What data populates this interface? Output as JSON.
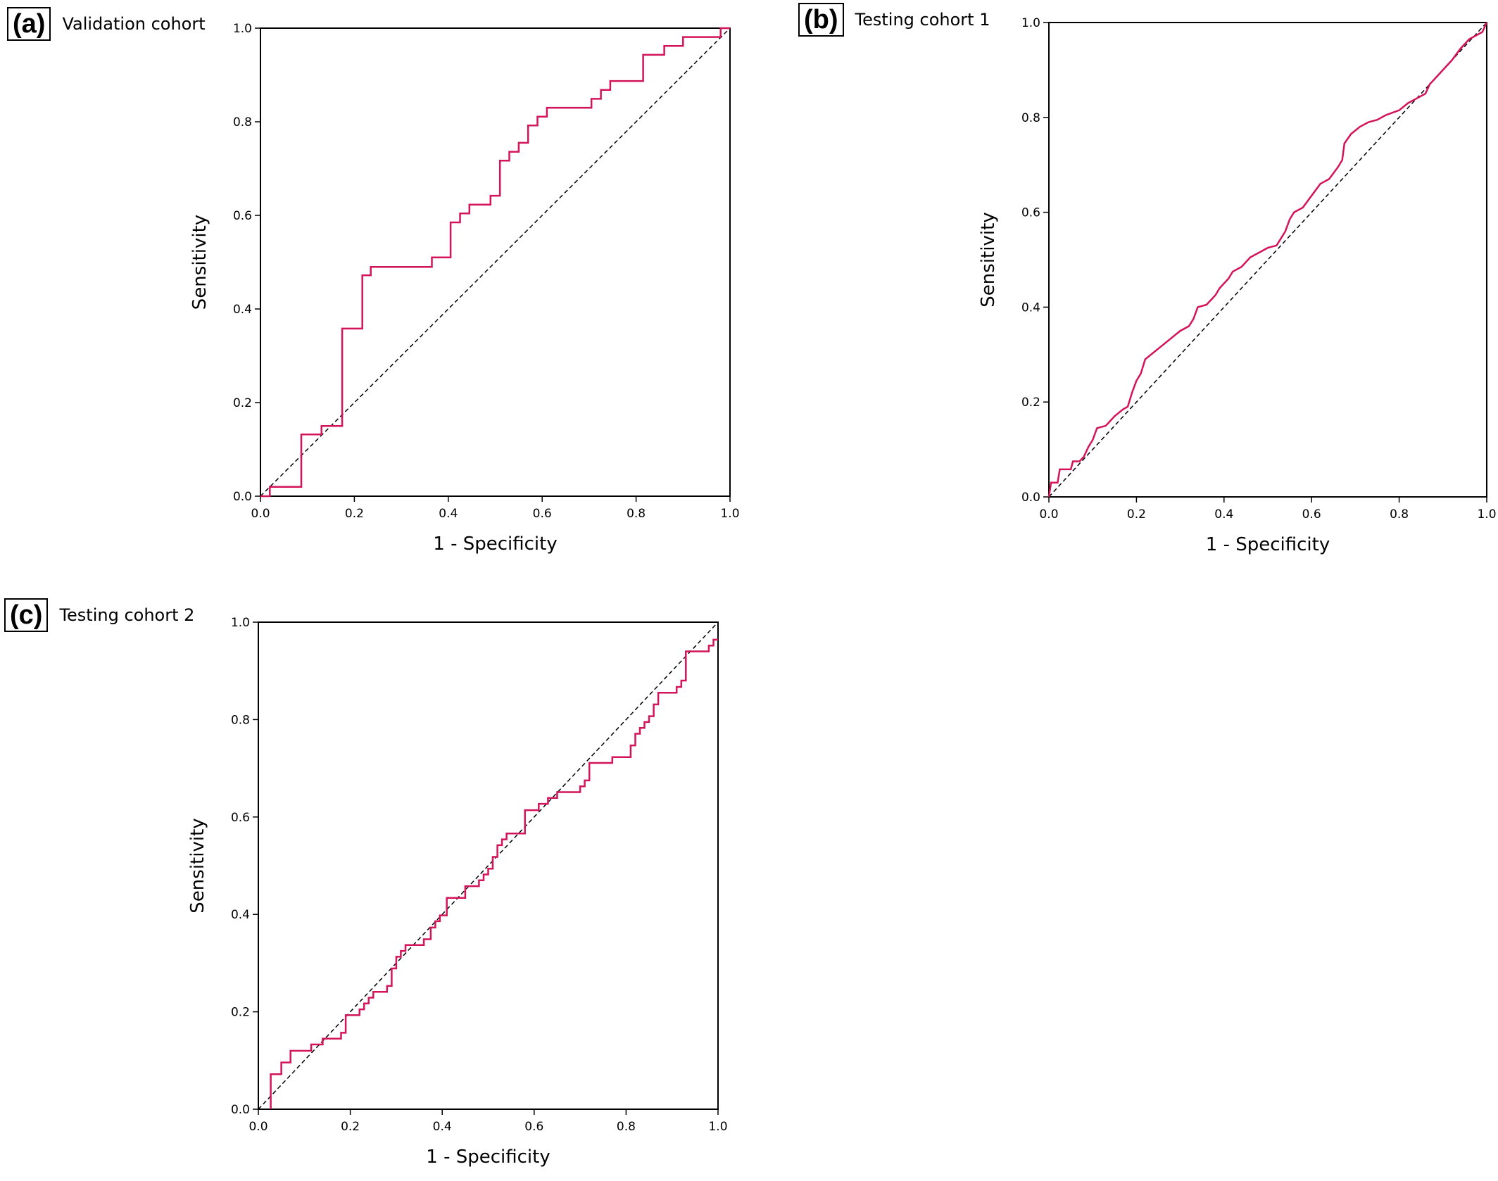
{
  "chart_data": [
    {
      "panel": "(a)",
      "title": "Validation cohort",
      "type": "line",
      "xlabel": "1 - Specificity",
      "ylabel": "Sensitivity",
      "xlim": [
        0,
        1
      ],
      "ylim": [
        0,
        1
      ],
      "x_ticks": [
        "0.0",
        "0.2",
        "0.4",
        "0.6",
        "0.8",
        "1.0"
      ],
      "y_ticks": [
        "0.0",
        "0.2",
        "0.4",
        "0.6",
        "0.8",
        "1.0"
      ],
      "reference_line": [
        [
          0,
          0
        ],
        [
          1,
          1
        ]
      ],
      "series": [
        {
          "color": "#d4145a",
          "step": true,
          "points": [
            [
              0,
              0
            ],
            [
              0.02,
              0
            ],
            [
              0.02,
              0.02
            ],
            [
              0.087,
              0.02
            ],
            [
              0.087,
              0.132
            ],
            [
              0.13,
              0.132
            ],
            [
              0.13,
              0.15
            ],
            [
              0.174,
              0.15
            ],
            [
              0.174,
              0.358
            ],
            [
              0.217,
              0.358
            ],
            [
              0.217,
              0.472
            ],
            [
              0.235,
              0.472
            ],
            [
              0.235,
              0.49
            ],
            [
              0.365,
              0.49
            ],
            [
              0.365,
              0.51
            ],
            [
              0.405,
              0.51
            ],
            [
              0.405,
              0.585
            ],
            [
              0.425,
              0.585
            ],
            [
              0.425,
              0.604
            ],
            [
              0.445,
              0.604
            ],
            [
              0.445,
              0.623
            ],
            [
              0.49,
              0.623
            ],
            [
              0.49,
              0.642
            ],
            [
              0.51,
              0.642
            ],
            [
              0.51,
              0.717
            ],
            [
              0.53,
              0.717
            ],
            [
              0.53,
              0.736
            ],
            [
              0.55,
              0.736
            ],
            [
              0.55,
              0.755
            ],
            [
              0.57,
              0.755
            ],
            [
              0.57,
              0.792
            ],
            [
              0.59,
              0.792
            ],
            [
              0.59,
              0.811
            ],
            [
              0.61,
              0.811
            ],
            [
              0.61,
              0.83
            ],
            [
              0.705,
              0.83
            ],
            [
              0.705,
              0.849
            ],
            [
              0.725,
              0.849
            ],
            [
              0.725,
              0.868
            ],
            [
              0.745,
              0.868
            ],
            [
              0.745,
              0.887
            ],
            [
              0.815,
              0.887
            ],
            [
              0.815,
              0.943
            ],
            [
              0.86,
              0.943
            ],
            [
              0.86,
              0.962
            ],
            [
              0.9,
              0.962
            ],
            [
              0.9,
              0.981
            ],
            [
              0.98,
              0.981
            ],
            [
              0.98,
              1.0
            ],
            [
              1.0,
              1.0
            ]
          ]
        }
      ]
    },
    {
      "panel": "(b)",
      "title": "Testing cohort 1",
      "type": "line",
      "xlabel": "1 - Specificity",
      "ylabel": "Sensitivity",
      "xlim": [
        0,
        1
      ],
      "ylim": [
        0,
        1
      ],
      "x_ticks": [
        "0.0",
        "0.2",
        "0.4",
        "0.6",
        "0.8",
        "1.0"
      ],
      "y_ticks": [
        "0.0",
        "0.2",
        "0.4",
        "0.6",
        "0.8",
        "1.0"
      ],
      "reference_line": [
        [
          0,
          0
        ],
        [
          1,
          1
        ]
      ],
      "series": [
        {
          "color": "#d4145a",
          "step": true,
          "points": [
            [
              0,
              0
            ],
            [
              0.005,
              0.03
            ],
            [
              0.02,
              0.03
            ],
            [
              0.025,
              0.058
            ],
            [
              0.05,
              0.058
            ],
            [
              0.055,
              0.075
            ],
            [
              0.07,
              0.075
            ],
            [
              0.08,
              0.085
            ],
            [
              0.09,
              0.105
            ],
            [
              0.1,
              0.12
            ],
            [
              0.11,
              0.145
            ],
            [
              0.13,
              0.15
            ],
            [
              0.15,
              0.17
            ],
            [
              0.17,
              0.185
            ],
            [
              0.18,
              0.19
            ],
            [
              0.19,
              0.22
            ],
            [
              0.2,
              0.245
            ],
            [
              0.21,
              0.26
            ],
            [
              0.22,
              0.29
            ],
            [
              0.24,
              0.305
            ],
            [
              0.26,
              0.32
            ],
            [
              0.28,
              0.335
            ],
            [
              0.3,
              0.35
            ],
            [
              0.32,
              0.36
            ],
            [
              0.33,
              0.375
            ],
            [
              0.34,
              0.4
            ],
            [
              0.36,
              0.405
            ],
            [
              0.38,
              0.425
            ],
            [
              0.39,
              0.44
            ],
            [
              0.41,
              0.46
            ],
            [
              0.42,
              0.475
            ],
            [
              0.44,
              0.485
            ],
            [
              0.46,
              0.505
            ],
            [
              0.48,
              0.515
            ],
            [
              0.5,
              0.525
            ],
            [
              0.52,
              0.53
            ],
            [
              0.53,
              0.545
            ],
            [
              0.54,
              0.56
            ],
            [
              0.55,
              0.585
            ],
            [
              0.56,
              0.6
            ],
            [
              0.58,
              0.61
            ],
            [
              0.6,
              0.635
            ],
            [
              0.62,
              0.66
            ],
            [
              0.64,
              0.67
            ],
            [
              0.66,
              0.695
            ],
            [
              0.67,
              0.71
            ],
            [
              0.675,
              0.745
            ],
            [
              0.69,
              0.765
            ],
            [
              0.71,
              0.78
            ],
            [
              0.73,
              0.79
            ],
            [
              0.75,
              0.795
            ],
            [
              0.77,
              0.805
            ],
            [
              0.8,
              0.815
            ],
            [
              0.82,
              0.83
            ],
            [
              0.84,
              0.84
            ],
            [
              0.86,
              0.85
            ],
            [
              0.87,
              0.87
            ],
            [
              0.88,
              0.88
            ],
            [
              0.9,
              0.9
            ],
            [
              0.92,
              0.92
            ],
            [
              0.94,
              0.945
            ],
            [
              0.96,
              0.965
            ],
            [
              0.98,
              0.975
            ],
            [
              0.99,
              0.98
            ],
            [
              1.0,
              1.0
            ]
          ]
        }
      ]
    },
    {
      "panel": "(c)",
      "title": "Testing cohort 2",
      "type": "line",
      "xlabel": "1 - Specificity",
      "ylabel": "Sensitivity",
      "xlim": [
        0,
        1
      ],
      "ylim": [
        0,
        1
      ],
      "x_ticks": [
        "0.0",
        "0.2",
        "0.4",
        "0.6",
        "0.8",
        "1.0"
      ],
      "y_ticks": [
        "0.0",
        "0.2",
        "0.4",
        "0.6",
        "0.8",
        "1.0"
      ],
      "reference_line": [
        [
          0,
          0
        ],
        [
          1,
          1
        ]
      ],
      "series": [
        {
          "color": "#d4145a",
          "step": true,
          "points": [
            [
              0.027,
              0
            ],
            [
              0.027,
              0.072
            ],
            [
              0.05,
              0.072
            ],
            [
              0.05,
              0.096
            ],
            [
              0.07,
              0.096
            ],
            [
              0.07,
              0.12
            ],
            [
              0.115,
              0.12
            ],
            [
              0.115,
              0.133
            ],
            [
              0.14,
              0.133
            ],
            [
              0.14,
              0.145
            ],
            [
              0.18,
              0.145
            ],
            [
              0.18,
              0.157
            ],
            [
              0.19,
              0.157
            ],
            [
              0.19,
              0.193
            ],
            [
              0.22,
              0.193
            ],
            [
              0.22,
              0.205
            ],
            [
              0.23,
              0.205
            ],
            [
              0.23,
              0.217
            ],
            [
              0.24,
              0.217
            ],
            [
              0.24,
              0.229
            ],
            [
              0.25,
              0.229
            ],
            [
              0.25,
              0.241
            ],
            [
              0.28,
              0.241
            ],
            [
              0.28,
              0.253
            ],
            [
              0.29,
              0.253
            ],
            [
              0.29,
              0.289
            ],
            [
              0.3,
              0.289
            ],
            [
              0.3,
              0.313
            ],
            [
              0.31,
              0.313
            ],
            [
              0.31,
              0.325
            ],
            [
              0.32,
              0.325
            ],
            [
              0.32,
              0.337
            ],
            [
              0.36,
              0.337
            ],
            [
              0.36,
              0.349
            ],
            [
              0.375,
              0.349
            ],
            [
              0.375,
              0.373
            ],
            [
              0.385,
              0.373
            ],
            [
              0.385,
              0.386
            ],
            [
              0.395,
              0.386
            ],
            [
              0.395,
              0.398
            ],
            [
              0.41,
              0.398
            ],
            [
              0.41,
              0.434
            ],
            [
              0.45,
              0.434
            ],
            [
              0.45,
              0.458
            ],
            [
              0.48,
              0.458
            ],
            [
              0.48,
              0.47
            ],
            [
              0.49,
              0.47
            ],
            [
              0.49,
              0.482
            ],
            [
              0.5,
              0.482
            ],
            [
              0.5,
              0.494
            ],
            [
              0.51,
              0.494
            ],
            [
              0.51,
              0.518
            ],
            [
              0.52,
              0.518
            ],
            [
              0.52,
              0.542
            ],
            [
              0.53,
              0.542
            ],
            [
              0.53,
              0.554
            ],
            [
              0.54,
              0.554
            ],
            [
              0.54,
              0.566
            ],
            [
              0.58,
              0.566
            ],
            [
              0.58,
              0.614
            ],
            [
              0.61,
              0.614
            ],
            [
              0.61,
              0.627
            ],
            [
              0.63,
              0.627
            ],
            [
              0.63,
              0.639
            ],
            [
              0.65,
              0.639
            ],
            [
              0.65,
              0.651
            ],
            [
              0.7,
              0.651
            ],
            [
              0.7,
              0.663
            ],
            [
              0.71,
              0.663
            ],
            [
              0.71,
              0.675
            ],
            [
              0.72,
              0.675
            ],
            [
              0.72,
              0.711
            ],
            [
              0.77,
              0.711
            ],
            [
              0.77,
              0.723
            ],
            [
              0.81,
              0.723
            ],
            [
              0.81,
              0.747
            ],
            [
              0.82,
              0.747
            ],
            [
              0.82,
              0.771
            ],
            [
              0.83,
              0.771
            ],
            [
              0.83,
              0.783
            ],
            [
              0.84,
              0.783
            ],
            [
              0.84,
              0.795
            ],
            [
              0.85,
              0.795
            ],
            [
              0.85,
              0.807
            ],
            [
              0.86,
              0.807
            ],
            [
              0.86,
              0.831
            ],
            [
              0.87,
              0.831
            ],
            [
              0.87,
              0.855
            ],
            [
              0.91,
              0.855
            ],
            [
              0.91,
              0.867
            ],
            [
              0.92,
              0.867
            ],
            [
              0.92,
              0.88
            ],
            [
              0.93,
              0.88
            ],
            [
              0.93,
              0.94
            ],
            [
              0.98,
              0.94
            ],
            [
              0.98,
              0.952
            ],
            [
              0.99,
              0.952
            ],
            [
              0.99,
              0.964
            ],
            [
              1.0,
              0.964
            ]
          ]
        }
      ]
    }
  ]
}
